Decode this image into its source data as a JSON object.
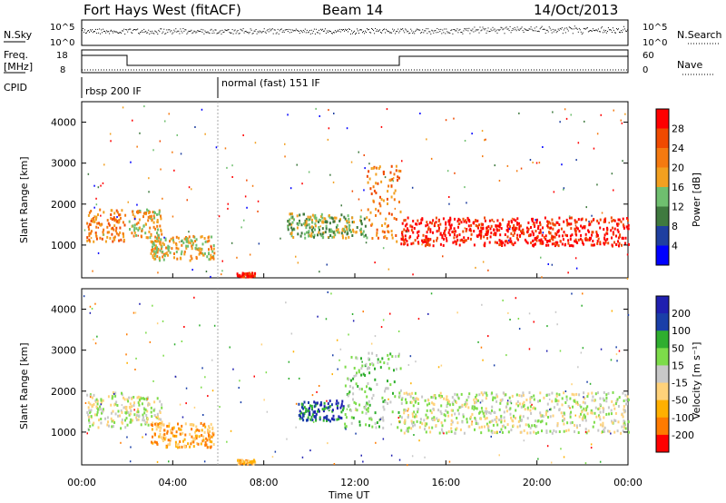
{
  "header": {
    "station": "Fort Hays West (fitACF)",
    "beam": "Beam 14",
    "date": "14/Oct/2013"
  },
  "strip_labels": {
    "nsky": "N.Sky",
    "nsearch": "N.Search",
    "freq": "Freq.",
    "freq_unit": "[MHz]",
    "nave": "Nave",
    "cpid": "CPID",
    "ylim_top": "10^5",
    "ylim_bot": "10^0",
    "freq_hi": "18",
    "freq_lo": "8",
    "nave_hi": "60",
    "nave_lo": "0"
  },
  "cpid": [
    {
      "label": "rbsp 200 IF",
      "start_hour": 0
    },
    {
      "label": "normal (fast) 151 IF",
      "start_hour": 6
    }
  ],
  "colors": {
    "power": [
      "#0000ff",
      "#1f3fa0",
      "#3f7a3f",
      "#6fbf6f",
      "#f2a020",
      "#f57a10",
      "#f04a00",
      "#ff0000"
    ],
    "velocity": [
      "#ff0000",
      "#ff7b00",
      "#ffb000",
      "#ffd27a",
      "#c8c8c8",
      "#7ddc4a",
      "#2fae2f",
      "#1a3fa8",
      "#2020b0"
    ]
  },
  "chart_data": [
    {
      "type": "heatmap",
      "panel": "power",
      "ylabel": "Slant Range [km]",
      "colorbar_label": "Power [dB]",
      "colorbar_ticks": [
        "4",
        "8",
        "12",
        "16",
        "20",
        "24",
        "28"
      ],
      "yticks": [
        "1000",
        "2000",
        "3000",
        "4000"
      ],
      "ylim": [
        200,
        4500
      ],
      "xlim_hours": [
        0,
        24
      ],
      "echo_regions": [
        {
          "t0": 0.2,
          "t1": 1.9,
          "r0": 1100,
          "r1": 1900,
          "level": 5
        },
        {
          "t0": 2.0,
          "t1": 3.5,
          "r0": 1200,
          "r1": 1900,
          "level": 4
        },
        {
          "t0": 3.0,
          "t1": 5.8,
          "r0": 650,
          "r1": 1250,
          "level": 4
        },
        {
          "t0": 6.8,
          "t1": 7.6,
          "r0": 250,
          "r1": 350,
          "level": 7
        },
        {
          "t0": 9.0,
          "t1": 12.5,
          "r0": 1200,
          "r1": 1800,
          "level": 3
        },
        {
          "t0": 12.5,
          "t1": 14.0,
          "r0": 1100,
          "r1": 3000,
          "level": 5
        },
        {
          "t0": 14.0,
          "t1": 24.0,
          "r0": 1000,
          "r1": 1700,
          "level": 7
        }
      ]
    },
    {
      "type": "heatmap",
      "panel": "velocity",
      "ylabel": "Slant Range [km]",
      "xlabel": "Time UT",
      "colorbar_label": "Velocity [m s⁻¹]",
      "colorbar_ticks": [
        "-200",
        "-100",
        "-50",
        "-15",
        "15",
        "50",
        "100",
        "200"
      ],
      "yticks": [
        "1000",
        "2000",
        "3000",
        "4000"
      ],
      "xticks": [
        "00:00",
        "04:00",
        "08:00",
        "12:00",
        "16:00",
        "20:00",
        "00:00"
      ],
      "ylim": [
        200,
        4500
      ],
      "xlim_hours": [
        0,
        24
      ],
      "echo_regions": [
        {
          "t0": 0.2,
          "t1": 2.0,
          "r0": 1100,
          "r1": 2000,
          "level": 4
        },
        {
          "t0": 2.0,
          "t1": 3.5,
          "r0": 1200,
          "r1": 1900,
          "level": 4
        },
        {
          "t0": 3.0,
          "t1": 5.8,
          "r0": 650,
          "r1": 1250,
          "level": 2
        },
        {
          "t0": 6.8,
          "t1": 7.6,
          "r0": 250,
          "r1": 350,
          "level": 2
        },
        {
          "t0": 9.5,
          "t1": 11.5,
          "r0": 1300,
          "r1": 1800,
          "level": 7
        },
        {
          "t0": 11.5,
          "t1": 14.0,
          "r0": 1100,
          "r1": 3000,
          "level": 5
        },
        {
          "t0": 14.0,
          "t1": 24.0,
          "r0": 1000,
          "r1": 2000,
          "level": 4
        }
      ]
    }
  ]
}
